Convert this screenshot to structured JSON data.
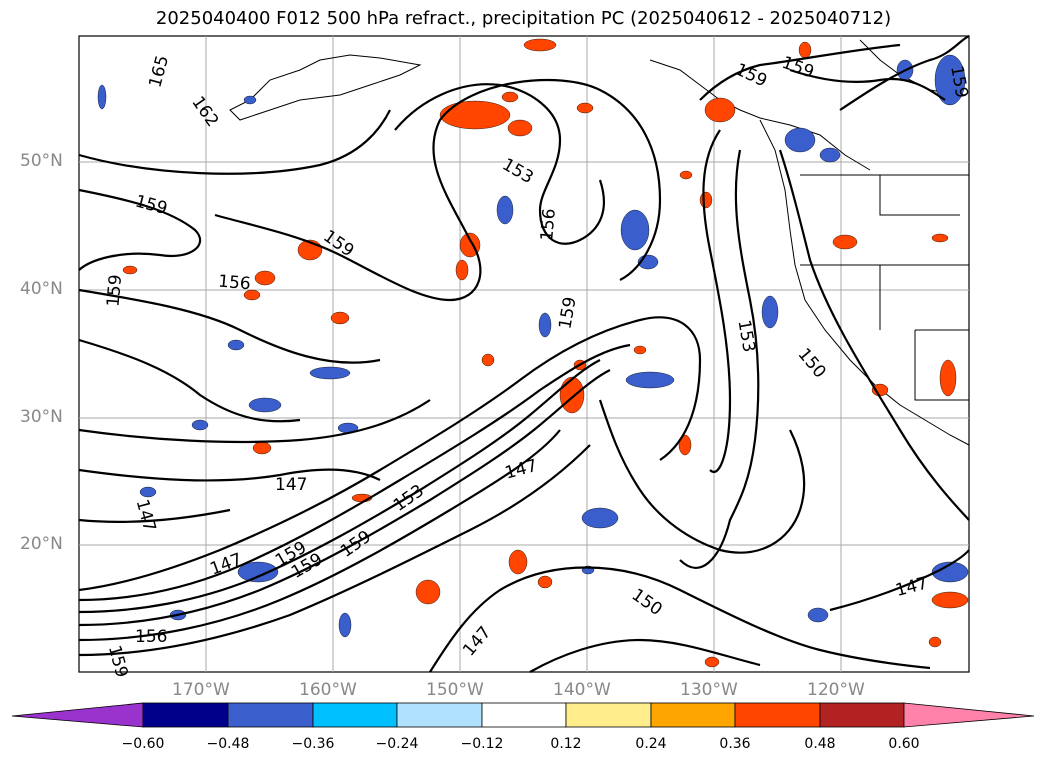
{
  "title": "2025040400 F012 500 hPa refract., precipitation PC (2025040612 - 2025040712)",
  "lat_labels": [
    "50°N",
    "40°N",
    "30°N",
    "20°N"
  ],
  "lon_labels": [
    "170°W",
    "160°W",
    "150°W",
    "140°W",
    "130°W",
    "120°W"
  ],
  "contour_labels": [
    "165",
    "162",
    "159",
    "159",
    "156",
    "159",
    "159",
    "153",
    "156",
    "159",
    "153",
    "150",
    "147",
    "147",
    "147",
    "153",
    "159",
    "159",
    "159",
    "147",
    "156",
    "159",
    "150",
    "147",
    "147",
    "159",
    "159"
  ],
  "colorbar": {
    "ticks": [
      "−0.60",
      "−0.48",
      "−0.36",
      "−0.24",
      "−0.12",
      "0.12",
      "0.24",
      "0.36",
      "0.48",
      "0.60"
    ],
    "colors": [
      "#9a32cd",
      "#00008b",
      "#3a5fcd",
      "#00bfff",
      "#b0e2ff",
      "#ffffff",
      "#ffec8b",
      "#ffa500",
      "#ff4500",
      "#b22222",
      "#ff82ab"
    ]
  }
}
